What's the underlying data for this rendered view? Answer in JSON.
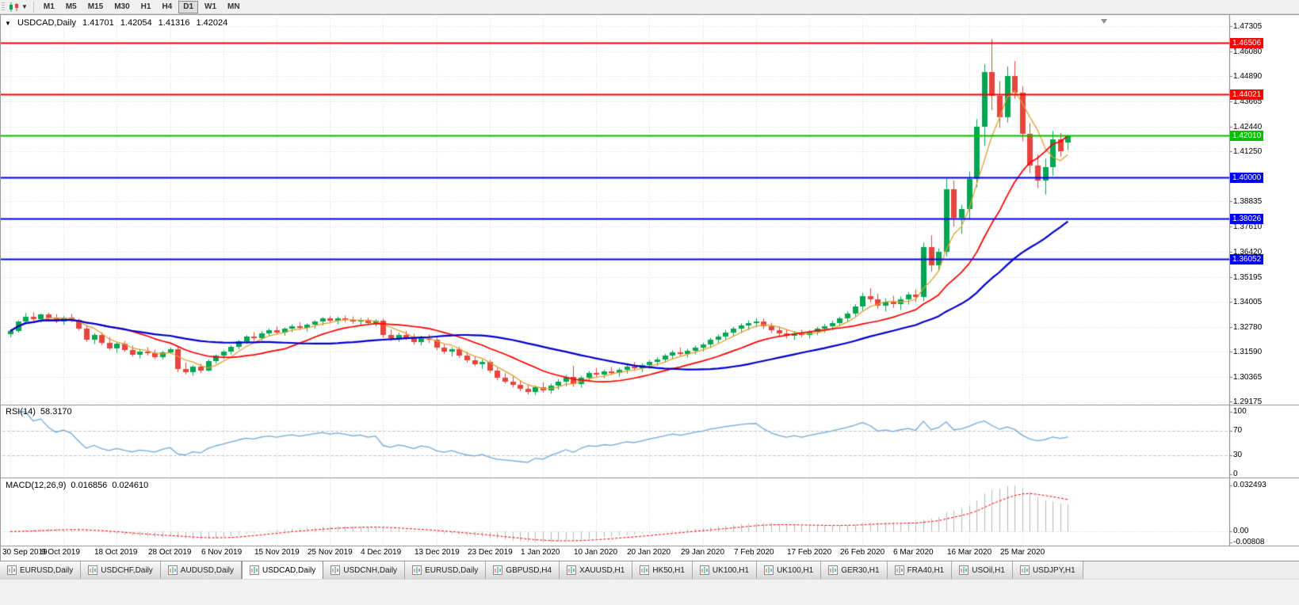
{
  "toolbar": {
    "timeframes": [
      {
        "label": "M1",
        "active": false
      },
      {
        "label": "M5",
        "active": false
      },
      {
        "label": "M15",
        "active": false
      },
      {
        "label": "M30",
        "active": false
      },
      {
        "label": "H1",
        "active": false
      },
      {
        "label": "H4",
        "active": false
      },
      {
        "label": "D1",
        "active": true
      },
      {
        "label": "W1",
        "active": false
      },
      {
        "label": "MN",
        "active": false
      }
    ]
  },
  "chart": {
    "header": {
      "symbol": "USDCAD,Daily",
      "open": "1.41701",
      "high": "1.42054",
      "low": "1.41316",
      "close": "1.42024"
    },
    "price_axis_labels": [
      "1.47305",
      "1.46080",
      "1.44890",
      "1.43665",
      "1.42440",
      "1.41250",
      "1.40025",
      "1.38835",
      "1.37610",
      "1.36420",
      "1.35195",
      "1.34005",
      "1.32780",
      "1.31590",
      "1.30365",
      "1.29175"
    ],
    "hlines": [
      {
        "label": "1.46506",
        "value": 1.46506,
        "color": "#FF0000"
      },
      {
        "label": "1.44021",
        "value": 1.44021,
        "color": "#FF0000"
      },
      {
        "label": "1.42010",
        "value": 1.4201,
        "color": "#00C000"
      },
      {
        "label": "1.40000",
        "value": 1.4,
        "color": "#0000F0"
      },
      {
        "label": "1.38026",
        "value": 1.38026,
        "color": "#0000F0"
      },
      {
        "label": "1.36052",
        "value": 1.36052,
        "color": "#0000F0"
      }
    ]
  },
  "rsi": {
    "label": "RSI(14)",
    "value": "58.3170",
    "period": 14,
    "axis_labels": [
      "100",
      "70",
      "30",
      "0"
    ],
    "axis_values": [
      100,
      70,
      30,
      0
    ],
    "dashed_levels": [
      70,
      30
    ],
    "line_color": "#6FA8DC"
  },
  "macd": {
    "label": "MACD(12,26,9)",
    "main": "0.016856",
    "signal": "0.024610",
    "fast": 12,
    "slow": 26,
    "signal_period": 9,
    "axis_labels": [
      "0.032493",
      "0.00",
      "-0.00808"
    ],
    "bar_color": "#B8B8B8",
    "signal_color": "#FF0000"
  },
  "chart_data": {
    "type": "candlestick",
    "title": "USDCAD,Daily",
    "symbol": "USDCAD",
    "timeframe": "Daily",
    "y_axis_range": [
      1.29175,
      1.47305
    ],
    "x_labels": [
      "30 Sep 2019",
      "9 Oct 2019",
      "18 Oct 2019",
      "28 Oct 2019",
      "6 Nov 2019",
      "15 Nov 2019",
      "25 Nov 2019",
      "4 Dec 2019",
      "13 Dec 2019",
      "23 Dec 2019",
      "1 Jan 2020",
      "10 Jan 2020",
      "20 Jan 2020",
      "29 Jan 2020",
      "7 Feb 2020",
      "17 Feb 2020",
      "26 Feb 2020",
      "6 Mar 2020",
      "16 Mar 2020",
      "25 Mar 2020"
    ],
    "x_label_every_n_bars": 7,
    "up_color": "#00A651",
    "down_color": "#E6443C",
    "moving_averages": [
      {
        "name": "fast",
        "period": 5,
        "color": "#E0A231",
        "width": 1.3
      },
      {
        "name": "medium",
        "period": 15,
        "color": "#FF0000",
        "width": 1.7
      },
      {
        "name": "slow",
        "period": 34,
        "color": "#0000CC",
        "width": 2.2
      }
    ],
    "candles": [
      [
        1.3243,
        1.3262,
        1.3227,
        1.3258
      ],
      [
        1.3258,
        1.331,
        1.325,
        1.3302
      ],
      [
        1.3302,
        1.3345,
        1.329,
        1.3327
      ],
      [
        1.3327,
        1.3348,
        1.3305,
        1.3315
      ],
      [
        1.3315,
        1.3342,
        1.3298,
        1.3338
      ],
      [
        1.3338,
        1.3347,
        1.331,
        1.332
      ],
      [
        1.332,
        1.334,
        1.3296,
        1.3305
      ],
      [
        1.3305,
        1.333,
        1.3288,
        1.3322
      ],
      [
        1.3322,
        1.334,
        1.33,
        1.331
      ],
      [
        1.331,
        1.3318,
        1.326,
        1.327
      ],
      [
        1.327,
        1.3285,
        1.3205,
        1.3215
      ],
      [
        1.3215,
        1.3248,
        1.3195,
        1.3238
      ],
      [
        1.3238,
        1.3252,
        1.319,
        1.32
      ],
      [
        1.32,
        1.3228,
        1.3165,
        1.3175
      ],
      [
        1.3175,
        1.3205,
        1.3152,
        1.3195
      ],
      [
        1.3195,
        1.321,
        1.3158,
        1.3168
      ],
      [
        1.3168,
        1.3188,
        1.3135,
        1.3145
      ],
      [
        1.3145,
        1.3172,
        1.3125,
        1.316
      ],
      [
        1.316,
        1.318,
        1.314,
        1.315
      ],
      [
        1.315,
        1.3168,
        1.3122,
        1.3132
      ],
      [
        1.3132,
        1.3162,
        1.312,
        1.3155
      ],
      [
        1.3155,
        1.3178,
        1.3148,
        1.317
      ],
      [
        1.317,
        1.3185,
        1.306,
        1.3075
      ],
      [
        1.3075,
        1.3105,
        1.3048,
        1.3058
      ],
      [
        1.3058,
        1.3092,
        1.3042,
        1.3085
      ],
      [
        1.3085,
        1.31,
        1.3055,
        1.3068
      ],
      [
        1.3068,
        1.312,
        1.3062,
        1.3112
      ],
      [
        1.3112,
        1.3145,
        1.31,
        1.3138
      ],
      [
        1.3138,
        1.3165,
        1.3122,
        1.3158
      ],
      [
        1.3158,
        1.319,
        1.3145,
        1.3182
      ],
      [
        1.3182,
        1.3215,
        1.317,
        1.3208
      ],
      [
        1.3208,
        1.3238,
        1.3195,
        1.323
      ],
      [
        1.323,
        1.3252,
        1.321,
        1.3222
      ],
      [
        1.3222,
        1.3258,
        1.3212,
        1.3248
      ],
      [
        1.3248,
        1.327,
        1.3232,
        1.3262
      ],
      [
        1.3262,
        1.328,
        1.324,
        1.3252
      ],
      [
        1.3252,
        1.3275,
        1.3235,
        1.3268
      ],
      [
        1.3268,
        1.329,
        1.3252,
        1.3282
      ],
      [
        1.3282,
        1.33,
        1.3262,
        1.3272
      ],
      [
        1.3272,
        1.3295,
        1.3255,
        1.3288
      ],
      [
        1.3288,
        1.331,
        1.327,
        1.3302
      ],
      [
        1.3302,
        1.3325,
        1.3285,
        1.3318
      ],
      [
        1.3318,
        1.333,
        1.3295,
        1.3308
      ],
      [
        1.3308,
        1.3328,
        1.329,
        1.332
      ],
      [
        1.332,
        1.3332,
        1.33,
        1.3312
      ],
      [
        1.3312,
        1.3328,
        1.3292,
        1.3302
      ],
      [
        1.3302,
        1.332,
        1.3285,
        1.331
      ],
      [
        1.331,
        1.3322,
        1.3288,
        1.3298
      ],
      [
        1.3298,
        1.3315,
        1.328,
        1.3308
      ],
      [
        1.3308,
        1.3318,
        1.3225,
        1.3238
      ],
      [
        1.3238,
        1.3265,
        1.321,
        1.3222
      ],
      [
        1.3222,
        1.325,
        1.3205,
        1.324
      ],
      [
        1.324,
        1.3258,
        1.3215,
        1.3228
      ],
      [
        1.3228,
        1.3245,
        1.3192,
        1.3205
      ],
      [
        1.3205,
        1.3235,
        1.3188,
        1.3225
      ],
      [
        1.3225,
        1.3242,
        1.32,
        1.3215
      ],
      [
        1.3215,
        1.3228,
        1.3165,
        1.3178
      ],
      [
        1.3178,
        1.3195,
        1.3148,
        1.3158
      ],
      [
        1.3158,
        1.318,
        1.3135,
        1.317
      ],
      [
        1.317,
        1.3182,
        1.3128,
        1.314
      ],
      [
        1.314,
        1.3158,
        1.3105,
        1.3115
      ],
      [
        1.3115,
        1.3135,
        1.3088,
        1.3098
      ],
      [
        1.3098,
        1.312,
        1.3075,
        1.3108
      ],
      [
        1.3108,
        1.3118,
        1.3055,
        1.3068
      ],
      [
        1.3068,
        1.308,
        1.302,
        1.3032
      ],
      [
        1.3032,
        1.3055,
        1.3005,
        1.3015
      ],
      [
        1.3015,
        1.3038,
        1.2985,
        1.2998
      ],
      [
        1.2998,
        1.302,
        1.2968,
        1.298
      ],
      [
        1.298,
        1.3002,
        1.2952,
        1.2965
      ],
      [
        1.2965,
        1.2995,
        1.2948,
        1.2988
      ],
      [
        1.2988,
        1.301,
        1.296,
        1.2972
      ],
      [
        1.2972,
        1.3005,
        1.2955,
        1.2995
      ],
      [
        1.2995,
        1.3025,
        1.2975,
        1.3012
      ],
      [
        1.3012,
        1.3045,
        1.299,
        1.3035
      ],
      [
        1.3035,
        1.309,
        1.2988,
        1.3002
      ],
      [
        1.3002,
        1.3042,
        1.2985,
        1.3032
      ],
      [
        1.3032,
        1.3065,
        1.3018,
        1.3055
      ],
      [
        1.3055,
        1.3078,
        1.3035,
        1.3048
      ],
      [
        1.3048,
        1.3072,
        1.303,
        1.3062
      ],
      [
        1.3062,
        1.3085,
        1.3045,
        1.3055
      ],
      [
        1.3055,
        1.308,
        1.3038,
        1.307
      ],
      [
        1.307,
        1.3095,
        1.3052,
        1.3085
      ],
      [
        1.3085,
        1.3108,
        1.3065,
        1.3078
      ],
      [
        1.3078,
        1.3102,
        1.306,
        1.3092
      ],
      [
        1.3092,
        1.3118,
        1.3075,
        1.3108
      ],
      [
        1.3108,
        1.3132,
        1.309,
        1.3122
      ],
      [
        1.3122,
        1.3148,
        1.3105,
        1.3138
      ],
      [
        1.3138,
        1.3165,
        1.312,
        1.3155
      ],
      [
        1.3155,
        1.3178,
        1.3135,
        1.3148
      ],
      [
        1.3148,
        1.3172,
        1.313,
        1.3162
      ],
      [
        1.3162,
        1.3188,
        1.3145,
        1.3178
      ],
      [
        1.3178,
        1.3202,
        1.3158,
        1.3192
      ],
      [
        1.3192,
        1.3225,
        1.3175,
        1.3215
      ],
      [
        1.3215,
        1.3242,
        1.3198,
        1.3232
      ],
      [
        1.3232,
        1.3262,
        1.3215,
        1.3252
      ],
      [
        1.3252,
        1.3278,
        1.3232,
        1.3268
      ],
      [
        1.3268,
        1.3295,
        1.3248,
        1.3285
      ],
      [
        1.3285,
        1.331,
        1.3262,
        1.3298
      ],
      [
        1.3298,
        1.332,
        1.3275,
        1.3305
      ],
      [
        1.3305,
        1.3318,
        1.3268,
        1.328
      ],
      [
        1.328,
        1.3298,
        1.3248,
        1.326
      ],
      [
        1.326,
        1.328,
        1.3232,
        1.3245
      ],
      [
        1.3245,
        1.3268,
        1.3222,
        1.3235
      ],
      [
        1.3235,
        1.3258,
        1.3215,
        1.3248
      ],
      [
        1.3248,
        1.3265,
        1.3228,
        1.324
      ],
      [
        1.324,
        1.3262,
        1.3222,
        1.3255
      ],
      [
        1.3255,
        1.3278,
        1.3238,
        1.3268
      ],
      [
        1.3268,
        1.3292,
        1.325,
        1.3282
      ],
      [
        1.3282,
        1.3308,
        1.3262,
        1.3298
      ],
      [
        1.3298,
        1.3328,
        1.328,
        1.3318
      ],
      [
        1.3318,
        1.3352,
        1.33,
        1.3342
      ],
      [
        1.3342,
        1.3388,
        1.3322,
        1.3375
      ],
      [
        1.3375,
        1.3442,
        1.3355,
        1.3428
      ],
      [
        1.3428,
        1.3465,
        1.3395,
        1.3412
      ],
      [
        1.3412,
        1.3438,
        1.3365,
        1.338
      ],
      [
        1.338,
        1.3415,
        1.3352,
        1.3398
      ],
      [
        1.3398,
        1.3428,
        1.337,
        1.3388
      ],
      [
        1.3388,
        1.3425,
        1.336,
        1.3412
      ],
      [
        1.3412,
        1.3445,
        1.3385,
        1.3432
      ],
      [
        1.3432,
        1.3458,
        1.3398,
        1.3422
      ],
      [
        1.3422,
        1.3685,
        1.3402,
        1.3662
      ],
      [
        1.3662,
        1.372,
        1.3545,
        1.3575
      ],
      [
        1.3575,
        1.3658,
        1.3548,
        1.3642
      ],
      [
        1.3642,
        1.3995,
        1.3618,
        1.3942
      ],
      [
        1.3942,
        1.3985,
        1.3762,
        1.3805
      ],
      [
        1.3805,
        1.3868,
        1.3728,
        1.3848
      ],
      [
        1.3848,
        1.4028,
        1.3798,
        1.3992
      ],
      [
        1.3992,
        1.4282,
        1.3952,
        1.4245
      ],
      [
        1.4245,
        1.4545,
        1.4152,
        1.451
      ],
      [
        1.451,
        1.4669,
        1.4325,
        1.4395
      ],
      [
        1.4395,
        1.4465,
        1.424,
        1.429
      ],
      [
        1.429,
        1.4535,
        1.4265,
        1.4488
      ],
      [
        1.4488,
        1.4562,
        1.438,
        1.4408
      ],
      [
        1.4408,
        1.444,
        1.4175,
        1.4212
      ],
      [
        1.4212,
        1.4262,
        1.402,
        1.4058
      ],
      [
        1.4058,
        1.411,
        1.3948,
        1.3985
      ],
      [
        1.3985,
        1.409,
        1.3918,
        1.4048
      ],
      [
        1.4048,
        1.4225,
        1.4008,
        1.4185
      ],
      [
        1.4185,
        1.4215,
        1.41,
        1.4128
      ],
      [
        1.41701,
        1.42054,
        1.41316,
        1.42024
      ]
    ]
  },
  "tabs": {
    "items": [
      {
        "label": "EURUSD,Daily",
        "active": false
      },
      {
        "label": "USDCHF,Daily",
        "active": false
      },
      {
        "label": "AUDUSD,Daily",
        "active": false
      },
      {
        "label": "USDCAD,Daily",
        "active": true
      },
      {
        "label": "USDCNH,Daily",
        "active": false
      },
      {
        "label": "EURUSD,Daily",
        "active": false
      },
      {
        "label": "GBPUSD,H4",
        "active": false
      },
      {
        "label": "XAUUSD,H1",
        "active": false
      },
      {
        "label": "HK50,H1",
        "active": false
      },
      {
        "label": "UK100,H1",
        "active": false
      },
      {
        "label": "UK100,H1",
        "active": false
      },
      {
        "label": "GER30,H1",
        "active": false
      },
      {
        "label": "FRA40,H1",
        "active": false
      },
      {
        "label": "USOil,H1",
        "active": false
      },
      {
        "label": "USDJPY,H1",
        "active": false
      }
    ]
  }
}
